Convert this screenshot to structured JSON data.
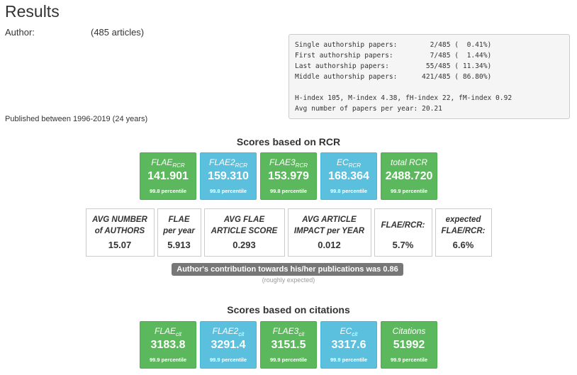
{
  "header": {
    "title": "Results",
    "author_label": "Author:",
    "article_count": "(485 articles)",
    "published": "Published between 1996-2019 (24 years)"
  },
  "stats": {
    "line1": "Single authorship papers:        2/485 (  0.41%)",
    "line2": "First authorship papers:         7/485 (  1.44%)",
    "line3": "Last authorship papers:         55/485 ( 11.34%)",
    "line4": "Middle authorship papers:      421/485 ( 86.80%)",
    "line5": "H-index 105, M-index 4.38, fH-index 22, fM-index 0.92",
    "line6": "Avg number of papers per year: 20.21"
  },
  "rcr": {
    "title": "Scores based on RCR",
    "cards": [
      {
        "name": "FLAE",
        "sub": "RCR",
        "value": "141.901",
        "percentile": "99.8 percentile",
        "color": "green"
      },
      {
        "name": "FLAE2",
        "sub": "RCR",
        "value": "159.310",
        "percentile": "99.8 percentile",
        "color": "blue"
      },
      {
        "name": "FLAE3",
        "sub": "RCR",
        "value": "153.979",
        "percentile": "99.8 percentile",
        "color": "green"
      },
      {
        "name": "EC",
        "sub": "RCR",
        "value": "168.364",
        "percentile": "99.8 percentile",
        "color": "blue"
      },
      {
        "name": "total RCR",
        "sub": "",
        "value": "2488.720",
        "percentile": "99.9 percentile",
        "color": "green"
      }
    ]
  },
  "metrics": [
    {
      "line1": "AVG NUMBER",
      "line2": "of AUTHORS",
      "value": "15.07"
    },
    {
      "line1": "FLAE",
      "line2": "per year",
      "value": "5.913"
    },
    {
      "line1": "AVG FLAE",
      "line2": "ARTICLE SCORE",
      "value": "0.293"
    },
    {
      "line1": "AVG ARTICLE",
      "line2": "IMPACT per YEAR",
      "value": "0.012"
    },
    {
      "line1": "FLAE/RCR:",
      "line2": "",
      "value": "5.7%"
    },
    {
      "line1": "expected",
      "line2": "FLAE/RCR:",
      "value": "6.6%"
    }
  ],
  "contribution": {
    "text": "Author's contribution towards his/her publications was 0.86",
    "note": "(roughly expected)"
  },
  "citations": {
    "title": "Scores based on citations",
    "cards": [
      {
        "name": "FLAE",
        "sub": "cit",
        "value": "3183.8",
        "percentile": "99.9 percentile",
        "color": "green"
      },
      {
        "name": "FLAE2",
        "sub": "cit",
        "value": "3291.4",
        "percentile": "99.9 percentile",
        "color": "blue"
      },
      {
        "name": "FLAE3",
        "sub": "cit",
        "value": "3151.5",
        "percentile": "99.9 percentile",
        "color": "green"
      },
      {
        "name": "EC",
        "sub": "cit",
        "value": "3317.6",
        "percentile": "99.9 percentile",
        "color": "blue"
      },
      {
        "name": "Citations",
        "sub": "",
        "value": "51992",
        "percentile": "99.9 percentile",
        "color": "green"
      }
    ]
  }
}
